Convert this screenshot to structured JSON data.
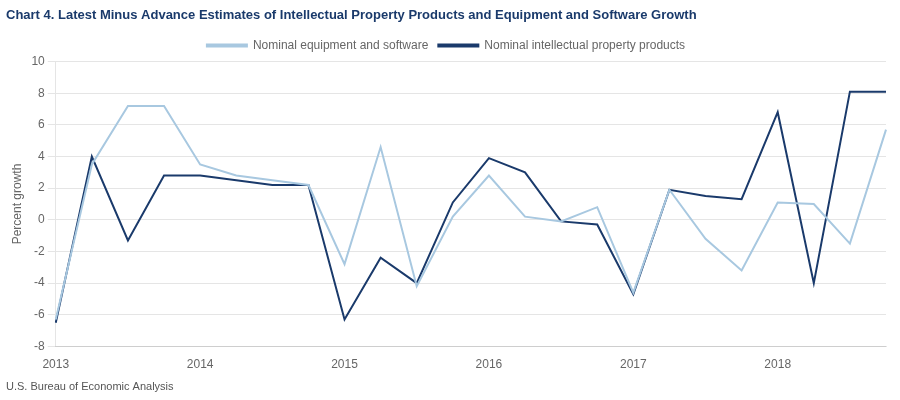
{
  "chart_data": {
    "type": "line",
    "title": "Chart 4. Latest Minus Advance Estimates of Intellectual Property Products and Equipment and Software Growth",
    "ylabel": "Percent growth",
    "source": "U.S. Bureau of Economic Analysis",
    "categories": [
      "2013",
      null,
      null,
      null,
      "2014",
      null,
      null,
      null,
      "2015",
      null,
      null,
      null,
      "2016",
      null,
      null,
      null,
      "2017",
      null,
      null,
      null,
      "2018",
      null,
      null,
      null
    ],
    "series": [
      {
        "name": "Nominal equipment and software",
        "color": "#a8c8e0",
        "values": [
          -6.3,
          3.5,
          7.2,
          7.2,
          3.5,
          2.8,
          2.5,
          2.2,
          -2.8,
          4.6,
          -4.2,
          0.2,
          2.8,
          0.2,
          -0.1,
          0.8,
          -4.6,
          1.9,
          -1.2,
          -3.2,
          1.1,
          1.0,
          -1.5,
          5.7
        ]
      },
      {
        "name": "Nominal intellectual property products",
        "color": "#1a3a6b",
        "values": [
          -6.5,
          4.0,
          -1.3,
          2.8,
          2.8,
          2.5,
          2.2,
          2.2,
          -6.3,
          -2.4,
          -4.0,
          1.1,
          3.9,
          3.0,
          -0.1,
          -0.3,
          -4.7,
          1.9,
          1.5,
          1.3,
          6.8,
          -4.0,
          8.1,
          8.1
        ]
      }
    ],
    "ylim": [
      -8,
      10
    ],
    "yticks": [
      -8,
      -6,
      -4,
      -2,
      0,
      2,
      4,
      6,
      8,
      10
    ],
    "grid": "y",
    "legend": "top"
  }
}
